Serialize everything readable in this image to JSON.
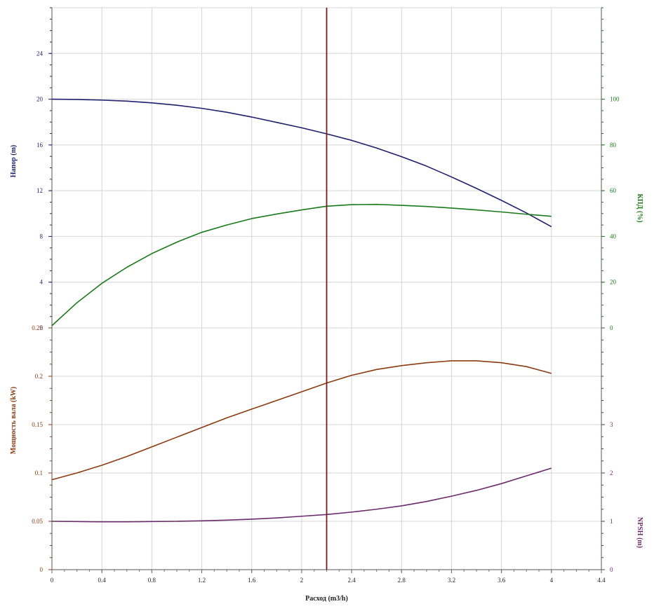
{
  "chart_data": {
    "type": "line",
    "x": {
      "label": "Расход (m3/h)",
      "range": [
        0,
        4.4
      ],
      "ticks": [
        "0",
        "0.4",
        "0.8",
        "1.2",
        "1.6",
        "2",
        "2.4",
        "2.8",
        "3.2",
        "3.6",
        "4",
        "4.4"
      ],
      "operating_point": 2.2
    },
    "top_panel": {
      "left_axis": {
        "label": "Напор (m)",
        "range": [
          0,
          28
        ],
        "ticks": [
          "0",
          "4",
          "8",
          "12",
          "16",
          "20",
          "24"
        ],
        "color": "#1f1f6e"
      },
      "right_axis": {
        "label": "КПД (%)",
        "range": [
          0,
          140
        ],
        "ticks": [
          "0",
          "20",
          "40",
          "60",
          "80",
          "100"
        ],
        "color": "#1a7a1a"
      }
    },
    "bottom_panel": {
      "left_axis": {
        "label": "Мощность вала (kW)",
        "range": [
          0,
          0.25
        ],
        "ticks": [
          "0",
          "0.05",
          "0.1",
          "0.15",
          "0.2",
          "0.25"
        ],
        "color": "#8b3a0e"
      },
      "right_axis": {
        "label": "NPSH (m)",
        "range": [
          0,
          5
        ],
        "ticks": [
          "0",
          "1",
          "2",
          "3"
        ],
        "color": "#6b2a6b"
      }
    },
    "series": [
      {
        "key": "head",
        "panel": "top",
        "axis": "left",
        "color": "#1f1f6e",
        "x": [
          0,
          0.2,
          0.4,
          0.6,
          0.8,
          1.0,
          1.2,
          1.4,
          1.6,
          1.8,
          2.0,
          2.2,
          2.4,
          2.6,
          2.8,
          3.0,
          3.2,
          3.4,
          3.6,
          3.8,
          4.0
        ],
        "y": [
          20,
          19.98,
          19.92,
          19.83,
          19.68,
          19.47,
          19.2,
          18.86,
          18.44,
          17.97,
          17.5,
          16.97,
          16.4,
          15.73,
          14.97,
          14.15,
          13.2,
          12.2,
          11.15,
          10.05,
          8.85
        ]
      },
      {
        "key": "efficiency",
        "panel": "top",
        "axis": "right",
        "color": "#1a7a1a",
        "x": [
          0,
          0.2,
          0.4,
          0.6,
          0.8,
          1.0,
          1.2,
          1.4,
          1.6,
          1.8,
          2.0,
          2.2,
          2.4,
          2.6,
          2.8,
          3.0,
          3.2,
          3.4,
          3.6,
          3.8,
          4.0
        ],
        "y": [
          1,
          11,
          19.5,
          26.5,
          32.5,
          37.5,
          41.8,
          45,
          47.8,
          49.8,
          51.6,
          53.2,
          53.9,
          54,
          53.6,
          53.1,
          52.4,
          51.6,
          50.7,
          49.7,
          48.8
        ]
      },
      {
        "key": "power",
        "panel": "bottom",
        "axis": "left",
        "color": "#8b3a0e",
        "x": [
          0,
          0.2,
          0.4,
          0.6,
          0.8,
          1.0,
          1.2,
          1.4,
          1.6,
          1.8,
          2.0,
          2.2,
          2.4,
          2.6,
          2.8,
          3.0,
          3.2,
          3.4,
          3.6,
          3.8,
          4.0
        ],
        "y": [
          0.093,
          0.1,
          0.108,
          0.117,
          0.127,
          0.137,
          0.147,
          0.157,
          0.166,
          0.175,
          0.184,
          0.193,
          0.201,
          0.207,
          0.211,
          0.214,
          0.216,
          0.216,
          0.214,
          0.21,
          0.203
        ]
      },
      {
        "key": "npsh",
        "panel": "bottom",
        "axis": "right",
        "color": "#6b2a6b",
        "x": [
          0,
          0.2,
          0.4,
          0.6,
          0.8,
          1.0,
          1.2,
          1.4,
          1.6,
          1.8,
          2.0,
          2.2,
          2.4,
          2.6,
          2.8,
          3.0,
          3.2,
          3.4,
          3.6,
          3.8,
          4.0
        ],
        "y": [
          1.0,
          0.995,
          0.99,
          0.99,
          0.995,
          1.0,
          1.01,
          1.025,
          1.045,
          1.07,
          1.105,
          1.14,
          1.19,
          1.25,
          1.32,
          1.41,
          1.52,
          1.64,
          1.78,
          1.94,
          2.1
        ]
      }
    ],
    "grid": true,
    "operating_line_color": "#7a1c1c"
  }
}
